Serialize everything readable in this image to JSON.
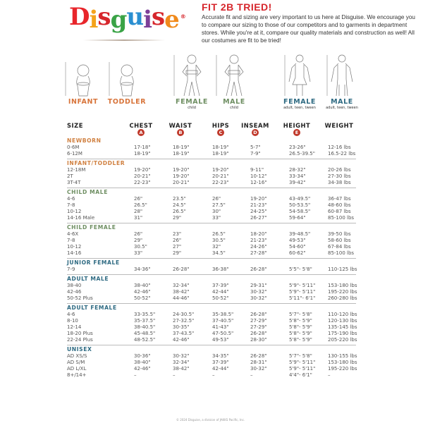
{
  "brand": {
    "name": "Disguise",
    "letters": [
      "D",
      "i",
      "s",
      "g",
      "u",
      "i",
      "s",
      "e"
    ],
    "letter_colors": [
      "#e8262b",
      "#f4a31c",
      "#d6262c",
      "#3aa346",
      "#2a8fd1",
      "#7d3f98",
      "#d6262c",
      "#f08a1c"
    ],
    "reg": "®"
  },
  "header": {
    "title": "FIT 2B TRIED!",
    "intro": "Accurate fit and sizing are very important to us here at Disguise. We encourage you to compare our sizing to those of our competitors and to garments in department stores. While you're at it, compare our quality materials and construction as well! All our costumes are fit to be tried!"
  },
  "figures": [
    {
      "label": "INFANT",
      "sub": "",
      "color": "#d8743a"
    },
    {
      "label": "TODDLER",
      "sub": "",
      "color": "#d8743a"
    },
    {
      "label": "FEMALE",
      "sub": "child",
      "color": "#6f8f63"
    },
    {
      "label": "MALE",
      "sub": "child",
      "color": "#6f8f63"
    },
    {
      "label": "FEMALE",
      "sub": "adult, teen, tween",
      "color": "#2e6a82"
    },
    {
      "label": "MALE",
      "sub": "adult, teen, tween",
      "color": "#2e6a82"
    }
  ],
  "columns": [
    {
      "label": "SIZE",
      "badge": ""
    },
    {
      "label": "CHEST",
      "badge": "A"
    },
    {
      "label": "WAIST",
      "badge": "B"
    },
    {
      "label": "HIPS",
      "badge": "C"
    },
    {
      "label": "INSEAM",
      "badge": "D"
    },
    {
      "label": "HEIGHT",
      "badge": "E"
    },
    {
      "label": "WEIGHT",
      "badge": ""
    }
  ],
  "badge_color": "#c0392b",
  "sections": [
    {
      "title": "NEWBORN",
      "color": "#d08040",
      "rows": [
        [
          "0-6M",
          "17-18\"",
          "18-19\"",
          "18-19\"",
          "5-7\"",
          "23-26\"",
          "12-16 lbs"
        ],
        [
          "6-12M",
          "18-19\"",
          "18-19\"",
          "18-19\"",
          "7-9\"",
          "26.5-39.5\"",
          "16.5-22 lbs"
        ]
      ]
    },
    {
      "title": "INFANT/TODDLER",
      "color": "#d08040",
      "rows": [
        [
          "12-18M",
          "19-20\"",
          "19-20\"",
          "19-20\"",
          "9-11\"",
          "28-32\"",
          "20-26 lbs"
        ],
        [
          "2T",
          "20-21\"",
          "19-20\"",
          "20-21\"",
          "10-12\"",
          "33-34\"",
          "27-30 lbs"
        ],
        [
          "3T-4T",
          "22-23\"",
          "20-21\"",
          "22-23\"",
          "12-16\"",
          "39-42\"",
          "34-38 lbs"
        ]
      ]
    },
    {
      "title": "CHILD MALE",
      "color": "#6f8f63",
      "rows": [
        [
          "4-6",
          "26\"",
          "23.5\"",
          "26\"",
          "19-20\"",
          "43-49.5\"",
          "36-47 lbs"
        ],
        [
          "7-8",
          "26.5\"",
          "24.5\"",
          "27.5\"",
          "21-23\"",
          "50-53.5\"",
          "48-60 lbs"
        ],
        [
          "10-12",
          "28\"",
          "26.5\"",
          "30\"",
          "24-25\"",
          "54-58.5\"",
          "60-87 lbs"
        ],
        [
          "14-16 Male",
          "31\"",
          "29\"",
          "33\"",
          "26-27\"",
          "59-64\"",
          "85-100 lbs"
        ]
      ]
    },
    {
      "title": "CHILD FEMALE",
      "color": "#6f8f63",
      "rows": [
        [
          "4-6X",
          "26\"",
          "23\"",
          "26.5\"",
          "18-20\"",
          "39-48.5\"",
          "39-50 lbs"
        ],
        [
          "7-8",
          "29\"",
          "26\"",
          "30.5\"",
          "21-23\"",
          "49-53\"",
          "58-60 lbs"
        ],
        [
          "10-12",
          "30.5\"",
          "27\"",
          "32\"",
          "24-26\"",
          "54-60\"",
          "67-84 lbs"
        ],
        [
          "14-16",
          "33\"",
          "29\"",
          "34.5\"",
          "27-28\"",
          "60-62\"",
          "85-100 lbs"
        ]
      ]
    },
    {
      "title": "JUNIOR FEMALE",
      "color": "#2e6a82",
      "rows": [
        [
          "7-9",
          "34-36\"",
          "26-28\"",
          "36-38\"",
          "26-28\"",
          "5'5\"- 5'8\"",
          "110-125 lbs"
        ]
      ]
    },
    {
      "title": "ADULT MALE",
      "color": "#2e6a82",
      "rows": [
        [
          "38-40",
          "38-40\"",
          "32-34\"",
          "37-39\"",
          "29-31\"",
          "5'9\"- 5'11\"",
          "153-180 lbs"
        ],
        [
          "42-46",
          "42-46\"",
          "38-42\"",
          "42-44\"",
          "30-32\"",
          "5'9\"- 5'11\"",
          "195-220 lbs"
        ],
        [
          "50-52 Plus",
          "50-52\"",
          "44-46\"",
          "50-52\"",
          "30-32\"",
          "5'11\"- 6'1\"",
          "260-280 lbs"
        ]
      ]
    },
    {
      "title": "ADULT FEMALE",
      "color": "#2e6a82",
      "rows": [
        [
          "4-6",
          "33-35.5\"",
          "24-30.5\"",
          "35-38.5\"",
          "26-28\"",
          "5'7\"- 5'8\"",
          "110-120 lbs"
        ],
        [
          "8-10",
          "35-37.5\"",
          "27-32.5\"",
          "37-40.5\"",
          "27-29\"",
          "5'8\"- 5'9\"",
          "120-130 lbs"
        ],
        [
          "12-14",
          "38-40.5\"",
          "30-35\"",
          "41-43\"",
          "27-29\"",
          "5'8\"- 5'9\"",
          "135-145 lbs"
        ],
        [
          "18-20 Plus",
          "45-48.5\"",
          "37-43.5\"",
          "47-50.5\"",
          "26-28\"",
          "5'8\"- 5'9\"",
          "175-190 lbs"
        ],
        [
          "22-24 Plus",
          "48-52.5\"",
          "42-46\"",
          "49-53\"",
          "28-30\"",
          "5'8\"- 5'9\"",
          "205-220 lbs"
        ]
      ]
    },
    {
      "title": "UNISEX",
      "color": "#2e6a82",
      "rows": [
        [
          "AD XS/S",
          "30-36\"",
          "30-32\"",
          "34-35\"",
          "26-28\"",
          "5'7\"- 5'8\"",
          "130-155 lbs"
        ],
        [
          "AD S/M",
          "38-40\"",
          "32-34\"",
          "37-39\"",
          "28-31\"",
          "5'9\"- 5'11\"",
          "153-180 lbs"
        ],
        [
          "AD L/XL",
          "42-46\"",
          "38-42\"",
          "42-44\"",
          "30-32\"",
          "5'9\"- 5'11\"",
          "195-220 lbs"
        ],
        [
          "8+/14+",
          "–",
          "–",
          "–",
          "–",
          "4'4\"- 6'1\"",
          "–"
        ]
      ]
    }
  ],
  "footer": "© 2024 Disguise, a division of JAKKS Pacific, Inc."
}
